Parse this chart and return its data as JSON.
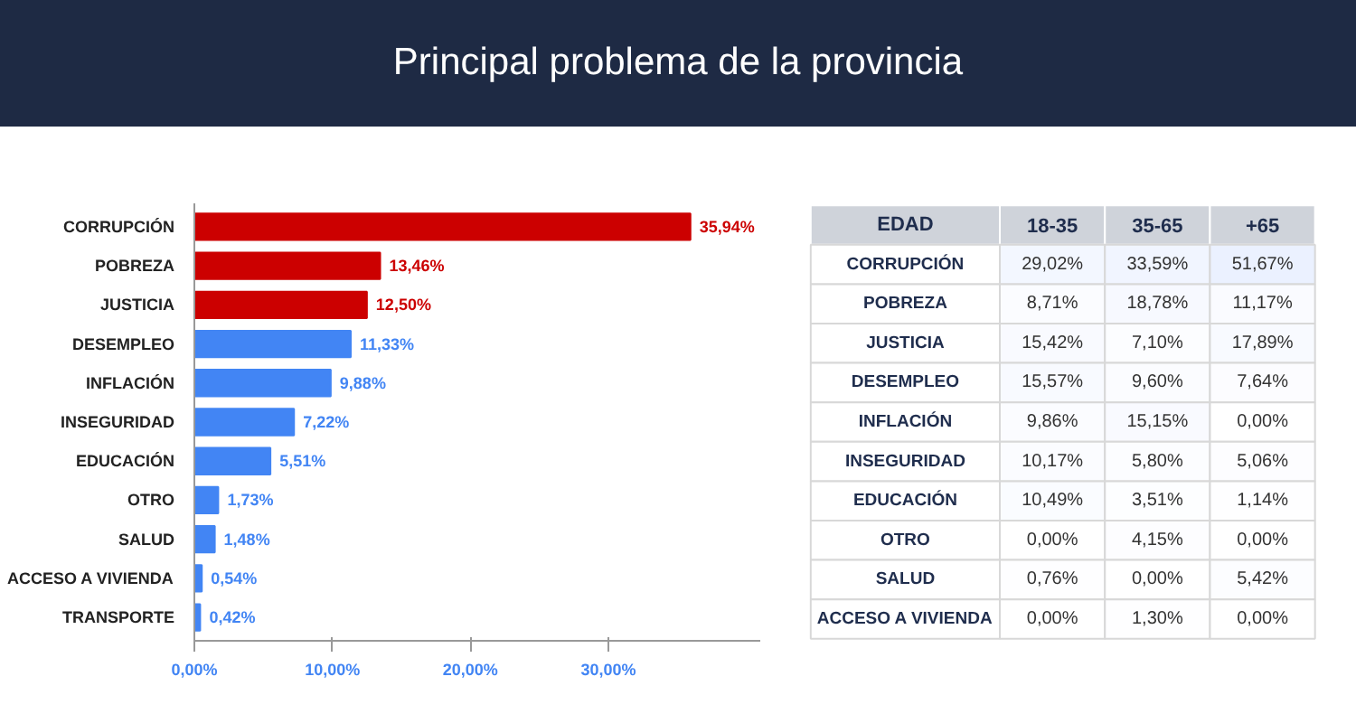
{
  "chart_data": [
    {
      "type": "bar",
      "orientation": "horizontal",
      "title": "Principal problema de la provincia",
      "categories": [
        "CORRUPCIÓN",
        "POBREZA",
        "JUSTICIA",
        "DESEMPLEO",
        "INFLACIÓN",
        "INSEGURIDAD",
        "EDUCACIÓN",
        "OTRO",
        "SALUD",
        "ACCESO A VIVIENDA",
        "TRANSPORTE"
      ],
      "values": [
        35.94,
        13.46,
        12.5,
        11.33,
        9.88,
        7.22,
        5.51,
        1.73,
        1.48,
        0.54,
        0.42
      ],
      "value_labels": [
        "35,94%",
        "13,46%",
        "12,50%",
        "11,33%",
        "9,88%",
        "7,22%",
        "5,51%",
        "1,73%",
        "1,48%",
        "0,54%",
        "0,42%"
      ],
      "colors": [
        "#cc0000",
        "#cc0000",
        "#cc0000",
        "#4285f4",
        "#4285f4",
        "#4285f4",
        "#4285f4",
        "#4285f4",
        "#4285f4",
        "#4285f4",
        "#4285f4"
      ],
      "xlim": [
        0,
        41
      ],
      "xticks": [
        {
          "value": 0,
          "label": "0,00%"
        },
        {
          "value": 10,
          "label": "10,00%"
        },
        {
          "value": 20,
          "label": "20,00%"
        },
        {
          "value": 30,
          "label": "30,00%"
        }
      ],
      "grid": false
    },
    {
      "type": "heatmap",
      "xlabel": "EDAD",
      "categories": [
        "18-35",
        "35-65",
        "+65"
      ],
      "y_categories": [
        "CORRUPCIÓN",
        "POBREZA",
        "JUSTICIA",
        "DESEMPLEO",
        "INFLACIÓN",
        "INSEGURIDAD",
        "EDUCACIÓN",
        "OTRO",
        "SALUD",
        "ACCESO A VIVIENDA"
      ],
      "cells": [
        [
          29.02,
          33.59,
          51.67
        ],
        [
          8.71,
          18.78,
          11.17
        ],
        [
          15.42,
          7.1,
          17.89
        ],
        [
          15.57,
          9.6,
          7.64
        ],
        [
          9.86,
          15.15,
          0.0
        ],
        [
          10.17,
          5.8,
          5.06
        ],
        [
          10.49,
          3.51,
          1.14
        ],
        [
          0.0,
          4.15,
          0.0
        ],
        [
          0.76,
          0.0,
          5.42
        ],
        [
          0.0,
          1.3,
          0.0
        ]
      ],
      "cell_labels": [
        [
          "29,02%",
          "33,59%",
          "51,67%"
        ],
        [
          "8,71%",
          "18,78%",
          "11,17%"
        ],
        [
          "15,42%",
          "7,10%",
          "17,89%"
        ],
        [
          "15,57%",
          "9,60%",
          "7,64%"
        ],
        [
          "9,86%",
          "15,15%",
          "0,00%"
        ],
        [
          "10,17%",
          "5,80%",
          "5,06%"
        ],
        [
          "10,49%",
          "3,51%",
          "1,14%"
        ],
        [
          "0,00%",
          "4,15%",
          "0,00%"
        ],
        [
          "0,76%",
          "0,00%",
          "5,42%"
        ],
        [
          "0,00%",
          "1,30%",
          "0,00%"
        ]
      ]
    }
  ]
}
